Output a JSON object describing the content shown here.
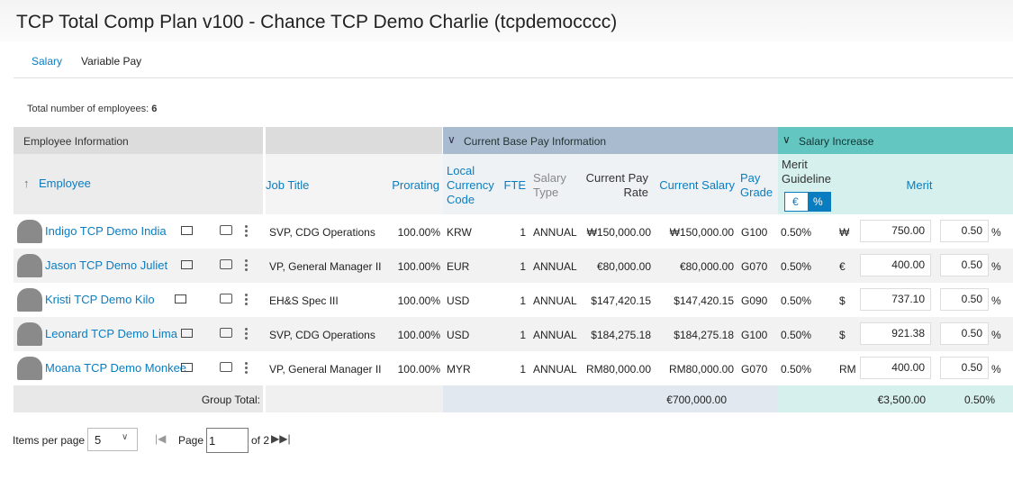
{
  "header": {
    "title": "TCP Total Comp Plan v100 - Chance TCP Demo Charlie (tcpdemocccc)"
  },
  "tabs": [
    "Salary",
    "Variable Pay"
  ],
  "summary": {
    "label": "Total number of employees:",
    "count": "6"
  },
  "table": {
    "groups": [
      "Employee Information",
      "Current Base Pay Information",
      "Salary Increase"
    ],
    "columns": [
      "Employee",
      "Job Title",
      "Prorating",
      "Local Currency Code",
      "FTE",
      "Salary Type",
      "Current Pay Rate",
      "Current Salary",
      "Pay Grade",
      "Merit Guideline",
      "Merit"
    ],
    "toggle": [
      "€",
      "%"
    ],
    "percent_sign": "%",
    "rows": [
      [
        "Indigo TCP Demo India",
        "SVP, CDG Operations",
        "100.00%",
        "KRW",
        "1",
        "ANNUAL",
        "₩150,000.00",
        "₩150,000.00",
        "G100",
        "0.50%",
        "₩",
        "750.00",
        "0.50"
      ],
      [
        "Jason TCP Demo Juliet",
        "VP, General Manager II",
        "100.00%",
        "EUR",
        "1",
        "ANNUAL",
        "€80,000.00",
        "€80,000.00",
        "G070",
        "0.50%",
        "€",
        "400.00",
        "0.50"
      ],
      [
        "Kristi TCP Demo Kilo",
        "EH&S Spec III",
        "100.00%",
        "USD",
        "1",
        "ANNUAL",
        "$147,420.15",
        "$147,420.15",
        "G090",
        "0.50%",
        "$",
        "737.10",
        "0.50"
      ],
      [
        "Leonard TCP Demo Lima",
        "SVP, CDG Operations",
        "100.00%",
        "USD",
        "1",
        "ANNUAL",
        "$184,275.18",
        "$184,275.18",
        "G100",
        "0.50%",
        "$",
        "921.38",
        "0.50"
      ],
      [
        "Moana TCP Demo Monkee",
        "VP, General Manager II",
        "100.00%",
        "MYR",
        "1",
        "ANNUAL",
        "RM80,000.00",
        "RM80,000.00",
        "G070",
        "0.50%",
        "RM",
        "400.00",
        "0.50"
      ]
    ],
    "total": {
      "label": "Group Total:",
      "salary": "€700,000.00",
      "merit": "€3,500.00",
      "percent": "0.50%"
    }
  },
  "pagination": {
    "items_label": "Items per page",
    "items": "5",
    "page_label": "Page",
    "page": "1",
    "of": "of 2"
  }
}
